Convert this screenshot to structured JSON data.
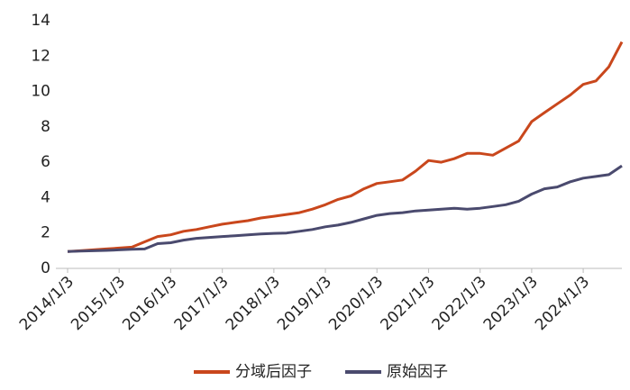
{
  "chart_data": {
    "type": "line",
    "x": [
      "2014/1/3",
      "2014/4/3",
      "2014/7/3",
      "2014/10/3",
      "2015/1/3",
      "2015/4/3",
      "2015/7/3",
      "2015/10/3",
      "2016/1/3",
      "2016/4/3",
      "2016/7/3",
      "2016/10/3",
      "2017/1/3",
      "2017/4/3",
      "2017/7/3",
      "2017/10/3",
      "2018/1/3",
      "2018/4/3",
      "2018/7/3",
      "2018/10/3",
      "2019/1/3",
      "2019/4/3",
      "2019/7/3",
      "2019/10/3",
      "2020/1/3",
      "2020/4/3",
      "2020/7/3",
      "2020/10/3",
      "2021/1/3",
      "2021/4/3",
      "2021/7/3",
      "2021/10/3",
      "2022/1/3",
      "2022/4/3",
      "2022/7/3",
      "2022/10/3",
      "2023/1/3",
      "2023/4/3",
      "2023/7/3",
      "2023/10/3",
      "2024/1/3",
      "2024/4/3",
      "2024/7/3",
      "2024/10/3"
    ],
    "series": [
      {
        "name": "分域后因子",
        "color": "#c9471c",
        "values": [
          0.95,
          1.0,
          1.05,
          1.1,
          1.15,
          1.2,
          1.5,
          1.8,
          1.9,
          2.1,
          2.2,
          2.35,
          2.5,
          2.6,
          2.7,
          2.85,
          2.95,
          3.05,
          3.15,
          3.35,
          3.6,
          3.9,
          4.1,
          4.5,
          4.8,
          4.9,
          5.0,
          5.5,
          6.1,
          6.0,
          6.2,
          6.5,
          6.5,
          6.4,
          6.8,
          7.2,
          8.3,
          8.8,
          9.3,
          9.8,
          10.4,
          10.6,
          11.4,
          12.8
        ]
      },
      {
        "name": "原始因子",
        "color": "#4a4a6e",
        "values": [
          0.95,
          0.98,
          1.0,
          1.02,
          1.05,
          1.08,
          1.1,
          1.4,
          1.45,
          1.6,
          1.7,
          1.75,
          1.8,
          1.85,
          1.9,
          1.95,
          1.98,
          2.0,
          2.1,
          2.2,
          2.35,
          2.45,
          2.6,
          2.8,
          3.0,
          3.1,
          3.15,
          3.25,
          3.3,
          3.35,
          3.4,
          3.35,
          3.4,
          3.5,
          3.6,
          3.8,
          4.2,
          4.5,
          4.6,
          4.9,
          5.1,
          5.2,
          5.3,
          5.8
        ]
      }
    ],
    "xlim": [
      "2014/1/3",
      "2024/10/3"
    ],
    "xticks": [
      "2014/1/3",
      "2015/1/3",
      "2016/1/3",
      "2017/1/3",
      "2018/1/3",
      "2019/1/3",
      "2020/1/3",
      "2021/1/3",
      "2022/1/3",
      "2023/1/3",
      "2024/1/3"
    ],
    "ylim": [
      0,
      14
    ],
    "yticks": [
      0,
      2,
      4,
      6,
      8,
      10,
      12,
      14
    ],
    "grid": false,
    "legend": "bottom"
  }
}
